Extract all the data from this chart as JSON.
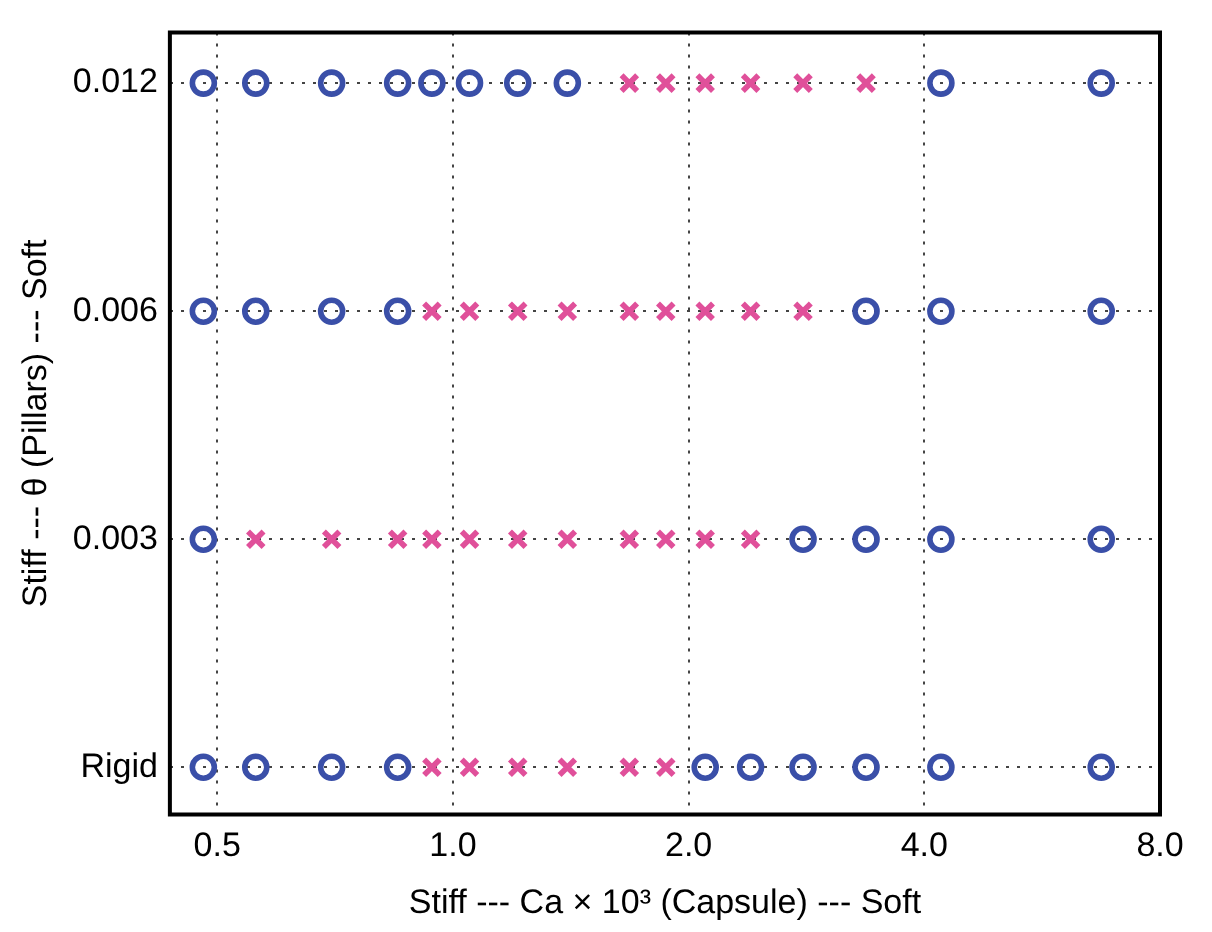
{
  "chart_data": {
    "type": "scatter",
    "xlabel": "Stiff --- Ca × 10³ (Capsule) --- Soft",
    "ylabel": "Stiff --- θ (Pillars) --- Soft",
    "log": "xy",
    "xlim": [
      0.435,
      8
    ],
    "xticks": [
      {
        "value": 0.5,
        "label": "0.5"
      },
      {
        "value": 1,
        "label": "1.0"
      },
      {
        "value": 2,
        "label": "2.0"
      },
      {
        "value": 4,
        "label": "4.0"
      },
      {
        "value": 8,
        "label": "8.0"
      }
    ],
    "ylim": [
      0.0013,
      0.014
    ],
    "yticks": [
      {
        "value": 0.0015,
        "label": "Rigid"
      },
      0.003,
      0.006,
      0.012
    ],
    "grid": true,
    "legend": false,
    "series": [
      {
        "marker": "circle",
        "color": "#3a4fa8",
        "x": [
          0.48,
          0.56,
          0.7,
          0.85,
          0.94,
          1.05,
          1.21,
          1.4,
          4.2,
          6.73,
          0.48,
          0.56,
          0.7,
          0.85,
          3.37,
          4.2,
          6.73,
          0.48,
          2.8,
          3.37,
          4.2,
          6.73,
          0.48,
          0.56,
          0.7,
          0.85,
          2.1,
          2.4,
          2.8,
          3.37,
          4.2,
          6.73
        ],
        "values": [
          0.012,
          0.012,
          0.012,
          0.012,
          0.012,
          0.012,
          0.012,
          0.012,
          0.012,
          0.012,
          0.006,
          0.006,
          0.006,
          0.006,
          0.006,
          0.006,
          0.006,
          0.003,
          0.003,
          0.003,
          0.003,
          0.003,
          0.0015,
          0.0015,
          0.0015,
          0.0015,
          0.0015,
          0.0015,
          0.0015,
          0.0015,
          0.0015,
          0.0015
        ]
      },
      {
        "marker": "cross",
        "color": "#e0509a",
        "x": [
          1.68,
          1.87,
          2.1,
          2.4,
          2.8,
          3.37,
          0.94,
          1.05,
          1.21,
          1.4,
          1.68,
          1.87,
          2.1,
          2.4,
          2.8,
          0.56,
          0.7,
          0.85,
          0.94,
          1.05,
          1.21,
          1.4,
          1.68,
          1.87,
          2.1,
          2.4,
          0.94,
          1.05,
          1.21,
          1.4,
          1.68,
          1.87
        ],
        "values": [
          0.012,
          0.012,
          0.012,
          0.012,
          0.012,
          0.012,
          0.006,
          0.006,
          0.006,
          0.006,
          0.006,
          0.006,
          0.006,
          0.006,
          0.006,
          0.003,
          0.003,
          0.003,
          0.003,
          0.003,
          0.003,
          0.003,
          0.003,
          0.003,
          0.003,
          0.003,
          0.0015,
          0.0015,
          0.0015,
          0.0015,
          0.0015,
          0.0015
        ]
      }
    ]
  }
}
